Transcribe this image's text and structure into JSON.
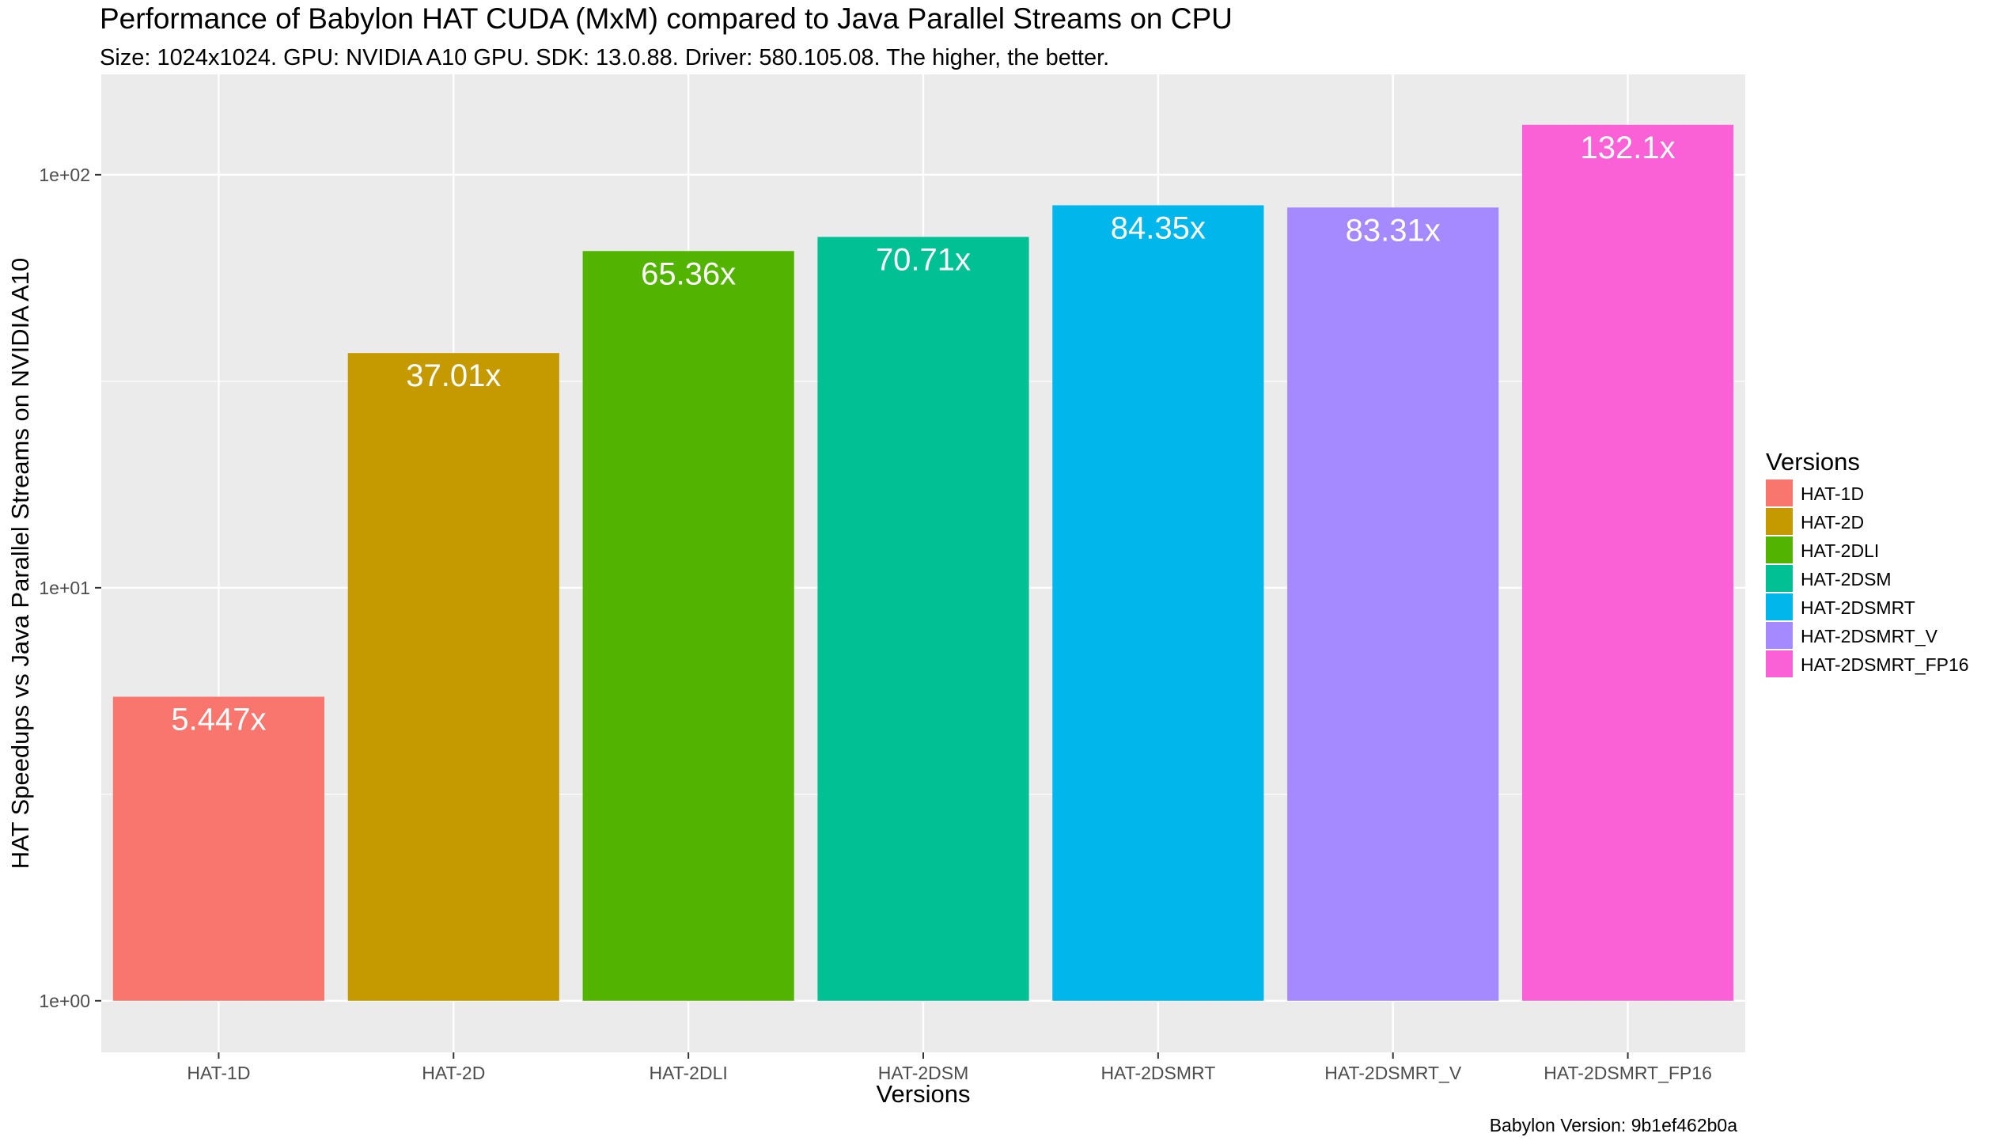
{
  "chart_data": {
    "type": "bar",
    "title": "Performance of Babylon HAT CUDA (MxM) compared to Java Parallel Streams on CPU",
    "subtitle": "Size: 1024x1024.  GPU: NVIDIA A10 GPU. SDK: 13.0.88. Driver: 580.105.08. The higher, the better.",
    "xlabel": "Versions",
    "ylabel": "HAT Speedups vs Java Parallel Streams on NVIDIA A10",
    "y_scale": "log10",
    "ylim": [
      0.75,
      175
    ],
    "y_ticks": [
      1,
      10,
      100
    ],
    "y_tick_labels": [
      "1e+00",
      "1e+01",
      "1e+02"
    ],
    "categories": [
      "HAT-1D",
      "HAT-2D",
      "HAT-2DLI",
      "HAT-2DSM",
      "HAT-2DSMRT",
      "HAT-2DSMRT_V",
      "HAT-2DSMRT_FP16"
    ],
    "values": [
      5.447,
      37.01,
      65.36,
      70.71,
      84.35,
      83.31,
      132.1
    ],
    "data_labels": [
      "5.447x",
      "37.01x",
      "65.36x",
      "70.71x",
      "84.35x",
      "83.31x",
      "132.1x"
    ],
    "colors": [
      "#F8766D",
      "#C49A00",
      "#53B400",
      "#00C094",
      "#00B6EB",
      "#A58AFF",
      "#FB61D7"
    ],
    "legend": {
      "title": "Versions",
      "placement": "right",
      "entries": [
        "HAT-1D",
        "HAT-2D",
        "HAT-2DLI",
        "HAT-2DSM",
        "HAT-2DSMRT",
        "HAT-2DSMRT_V",
        "HAT-2DSMRT_FP16"
      ]
    },
    "grid": true,
    "caption": "Babylon Version: 9b1ef462b0a"
  },
  "style": {
    "panel_background": "#EBEBEB",
    "grid_color": "#FFFFFF",
    "tick_color": "#333333"
  }
}
